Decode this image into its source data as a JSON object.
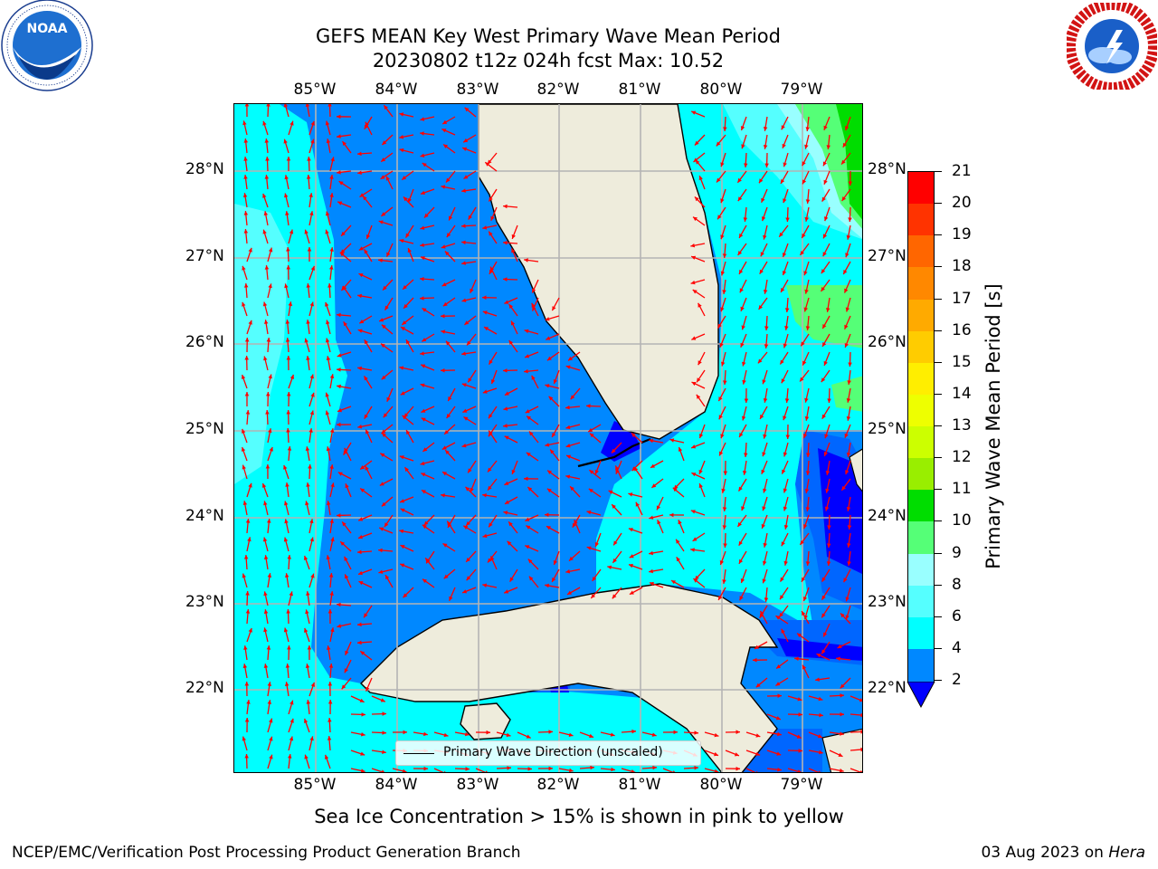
{
  "title": {
    "line1": "GEFS MEAN Key West Primary Wave Mean Period",
    "line2": "20230802 t12z 024h fcst   Max: 10.52"
  },
  "map": {
    "lon_labels": [
      "85°W",
      "84°W",
      "83°W",
      "82°W",
      "81°W",
      "80°W",
      "79°W"
    ],
    "lat_labels": [
      "28°N",
      "27°N",
      "26°N",
      "25°N",
      "24°N",
      "23°N",
      "22°N"
    ],
    "legend_text": "Primary Wave Direction (unscaled)",
    "land_color": "#eeecdc",
    "arrow_color": "#ff0000",
    "grid_color": "#b4b4b4"
  },
  "colorbar": {
    "label": "Primary Wave Mean Period [s]",
    "ticks": [
      "21",
      "20",
      "19",
      "18",
      "17",
      "16",
      "15",
      "14",
      "13",
      "12",
      "11",
      "10",
      "9",
      "8",
      "6",
      "4",
      "2"
    ],
    "colors": [
      "#ff0000",
      "#ff3300",
      "#ff6600",
      "#ff8800",
      "#ffaa00",
      "#ffcc00",
      "#ffee00",
      "#eeff00",
      "#ccff00",
      "#99ee00",
      "#55dd00",
      "#00dd00",
      "#55ff77",
      "#99ffff",
      "#55ffff",
      "#00ffff",
      "#00ddff",
      "#0088ff",
      "#0066ff"
    ],
    "under_color": "#0000ff"
  },
  "ice_note": "Sea Ice Concentration > 15% is shown in pink to yellow",
  "footer": {
    "left": "NCEP/EMC/Verification Post Processing Product Generation Branch",
    "date": "03 Aug 2023 on ",
    "machine": "Hera"
  },
  "logos": {
    "noaa_text": "NOAA",
    "noaa_ring": "NATIONAL OCEANIC AND ATMOSPHERIC ADMINISTRATION · U.S. DEPARTMENT OF COMMERCE",
    "nws_ring": "NATIONAL WEATHER SERVICE"
  }
}
